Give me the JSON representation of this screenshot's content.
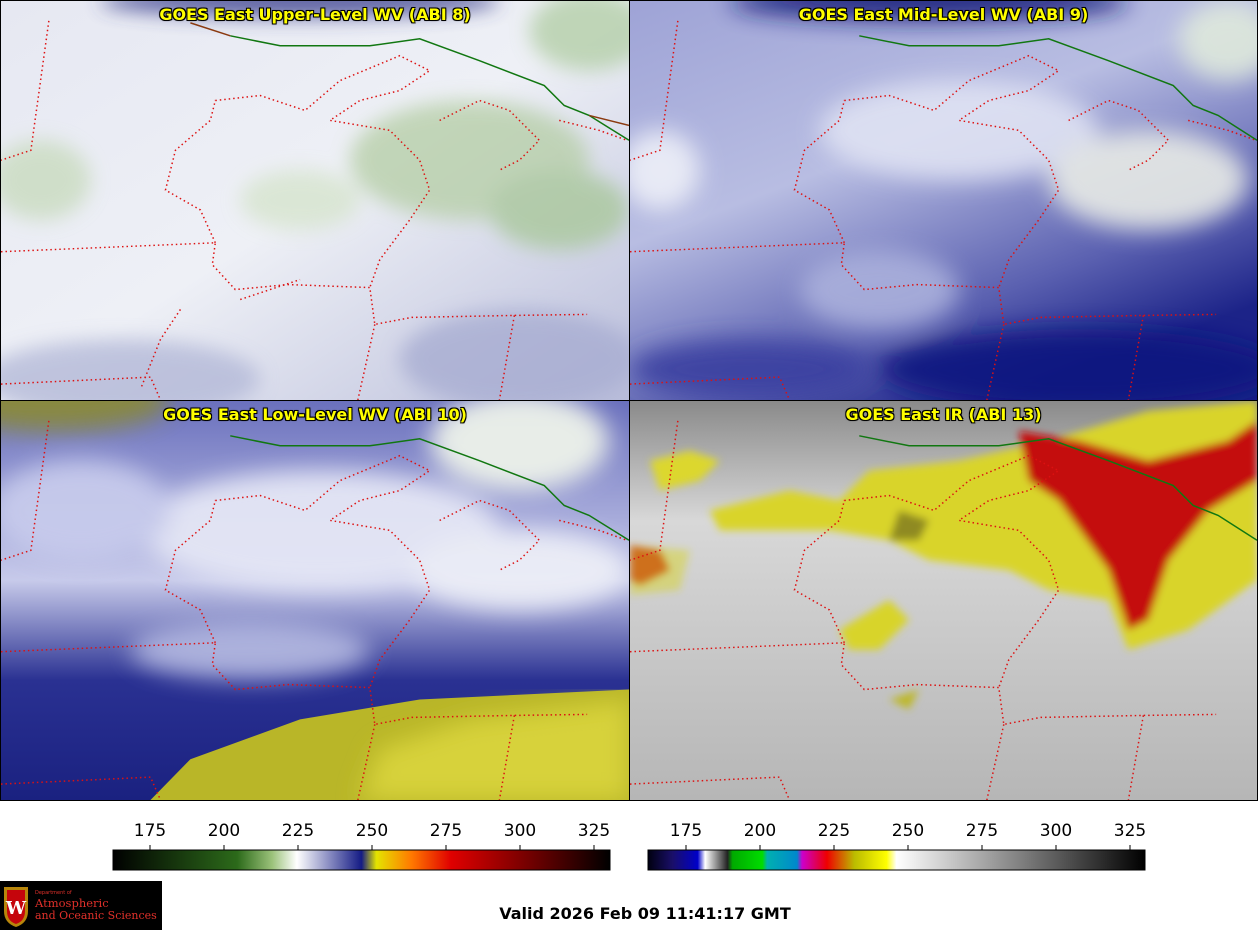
{
  "panels": [
    {
      "id": "upper",
      "title": "GOES East Upper-Level WV (ABI 8)"
    },
    {
      "id": "mid",
      "title": "GOES East Mid-Level WV (ABI 9)"
    },
    {
      "id": "low",
      "title": "GOES East Low-Level WV (ABI 10)"
    },
    {
      "id": "ir",
      "title": "GOES East IR (ABI 13)"
    }
  ],
  "colorbars": {
    "wv": {
      "ticks": [
        "175",
        "200",
        "225",
        "250",
        "275",
        "300",
        "325"
      ]
    },
    "ir": {
      "ticks": [
        "175",
        "200",
        "225",
        "250",
        "275",
        "300",
        "325"
      ]
    }
  },
  "logo": {
    "line1": "Department of",
    "line2": "Atmospheric",
    "line3": "and Oceanic Sciences"
  },
  "valid_time": "Valid 2026 Feb 09 11:41:17 GMT",
  "colors": {
    "border_line": "#dd1111",
    "boundary_green": "#117711",
    "title": "#ffff00"
  }
}
